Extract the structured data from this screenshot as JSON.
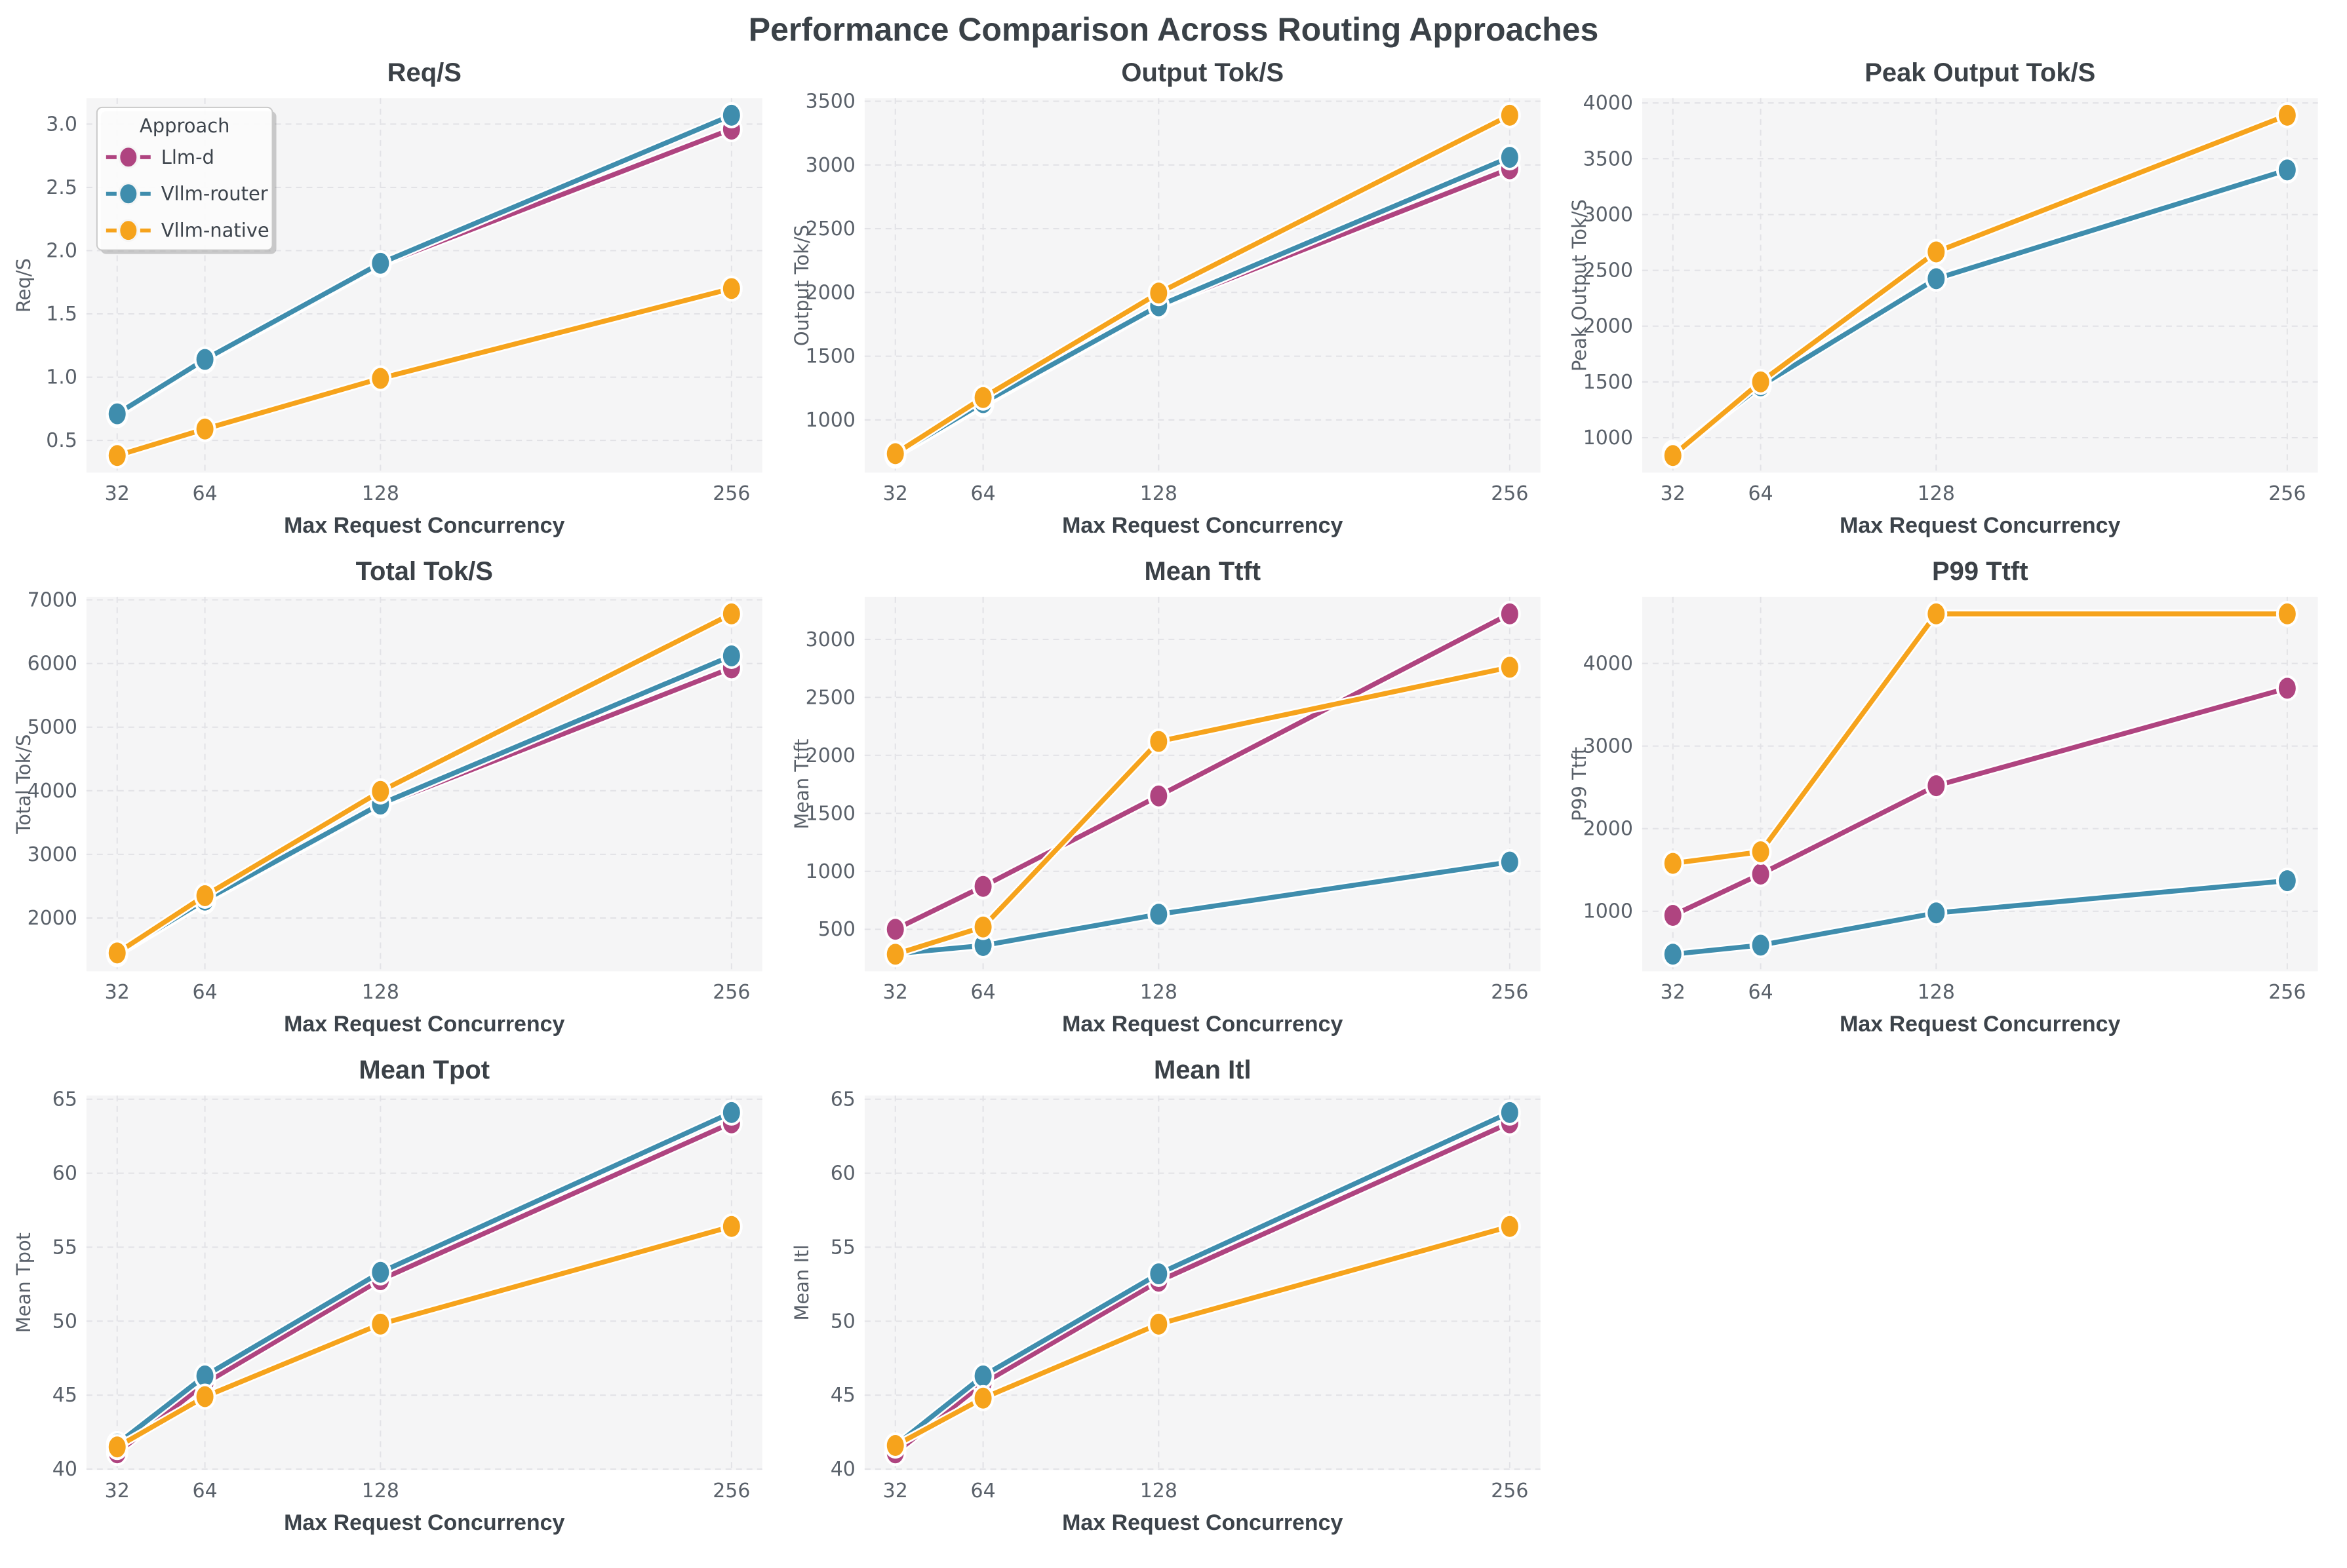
{
  "suptitle": "Performance Comparison Across Routing Approaches",
  "legend": {
    "title": "Approach",
    "entries": [
      {
        "label": "Llm-d",
        "color": "#af4480"
      },
      {
        "label": "Vllm-router",
        "color": "#3f8dad"
      },
      {
        "label": "Vllm-native",
        "color": "#f6a31c"
      }
    ]
  },
  "style": {
    "plot_bg": "#f5f5f6",
    "grid_color": "#e2e2e6",
    "title_color": "#3b4147",
    "tick_color": "#5a616a",
    "label_color": "#3c434a",
    "halo_color": "#ffffff"
  },
  "xlabel": "Max Request Concurrency",
  "xticks": [
    32,
    64,
    128,
    256
  ],
  "chart_data": [
    {
      "type": "line",
      "title": "Req/S",
      "ylabel": "Req/S",
      "x": [
        32,
        64,
        128,
        256
      ],
      "ytick_labels": [
        "0.5",
        "1.0",
        "1.5",
        "2.0",
        "2.5",
        "3.0"
      ],
      "yticks": [
        0.5,
        1.0,
        1.5,
        2.0,
        2.5,
        3.0
      ],
      "show_legend": true,
      "series": [
        {
          "name": "Llm-d",
          "values": [
            0.7,
            1.13,
            1.89,
            2.96
          ]
        },
        {
          "name": "Vllm-router",
          "values": [
            0.71,
            1.14,
            1.9,
            3.07
          ]
        },
        {
          "name": "Vllm-native",
          "values": [
            0.38,
            0.59,
            0.99,
            1.7
          ]
        }
      ]
    },
    {
      "type": "line",
      "title": "Output Tok/S",
      "ylabel": "Output Tok/S",
      "x": [
        32,
        64,
        128,
        256
      ],
      "ytick_labels": [
        "1000",
        "1500",
        "2000",
        "2500",
        "3000",
        "3500"
      ],
      "yticks": [
        1000,
        1500,
        2000,
        2500,
        3000,
        3500
      ],
      "show_legend": false,
      "series": [
        {
          "name": "Llm-d",
          "values": [
            720,
            1120,
            1890,
            2970
          ]
        },
        {
          "name": "Vllm-router",
          "values": [
            725,
            1135,
            1895,
            3060
          ]
        },
        {
          "name": "Vllm-native",
          "values": [
            735,
            1175,
            1995,
            3390
          ]
        }
      ]
    },
    {
      "type": "line",
      "title": "Peak Output Tok/S",
      "ylabel": "Peak Output Tok/S",
      "x": [
        32,
        64,
        128,
        256
      ],
      "ytick_labels": [
        "1000",
        "1500",
        "2000",
        "2500",
        "3000",
        "3500",
        "4000"
      ],
      "yticks": [
        1000,
        1500,
        2000,
        2500,
        3000,
        3500,
        4000
      ],
      "show_legend": false,
      "series": [
        {
          "name": "Llm-d",
          "values": [
            865,
            1475,
            2430,
            3395
          ]
        },
        {
          "name": "Vllm-router",
          "values": [
            850,
            1465,
            2425,
            3400
          ]
        },
        {
          "name": "Vllm-native",
          "values": [
            840,
            1500,
            2665,
            3890
          ]
        }
      ]
    },
    {
      "type": "line",
      "title": "Total Tok/S",
      "ylabel": "Total Tok/S",
      "x": [
        32,
        64,
        128,
        256
      ],
      "ytick_labels": [
        "2000",
        "3000",
        "4000",
        "5000",
        "6000",
        "7000"
      ],
      "yticks": [
        2000,
        3000,
        4000,
        5000,
        6000,
        7000
      ],
      "show_legend": false,
      "series": [
        {
          "name": "Llm-d",
          "values": [
            1430,
            2260,
            3770,
            5930
          ]
        },
        {
          "name": "Vllm-router",
          "values": [
            1440,
            2280,
            3790,
            6120
          ]
        },
        {
          "name": "Vllm-native",
          "values": [
            1450,
            2350,
            3990,
            6780
          ]
        }
      ]
    },
    {
      "type": "line",
      "title": "Mean Ttft",
      "ylabel": "Mean Ttft",
      "x": [
        32,
        64,
        128,
        256
      ],
      "ytick_labels": [
        "500",
        "1000",
        "1500",
        "2000",
        "2500",
        "3000"
      ],
      "yticks": [
        500,
        1000,
        1500,
        2000,
        2500,
        3000
      ],
      "show_legend": false,
      "series": [
        {
          "name": "Llm-d",
          "values": [
            500,
            870,
            1650,
            3220
          ]
        },
        {
          "name": "Vllm-router",
          "values": [
            290,
            360,
            630,
            1080
          ]
        },
        {
          "name": "Vllm-native",
          "values": [
            285,
            520,
            2120,
            2760
          ]
        }
      ]
    },
    {
      "type": "line",
      "title": "P99 Ttft",
      "ylabel": "P99 Ttft",
      "x": [
        32,
        64,
        128,
        256
      ],
      "ytick_labels": [
        "1000",
        "2000",
        "3000",
        "4000"
      ],
      "yticks": [
        1000,
        2000,
        3000,
        4000
      ],
      "show_legend": false,
      "series": [
        {
          "name": "Llm-d",
          "values": [
            950,
            1450,
            2520,
            3700
          ]
        },
        {
          "name": "Vllm-router",
          "values": [
            480,
            590,
            980,
            1370
          ]
        },
        {
          "name": "Vllm-native",
          "values": [
            1580,
            1720,
            4600,
            4600
          ]
        }
      ]
    },
    {
      "type": "line",
      "title": "Mean Tpot",
      "ylabel": "Mean Tpot",
      "x": [
        32,
        64,
        128,
        256
      ],
      "ytick_labels": [
        "40",
        "45",
        "50",
        "55",
        "60",
        "65"
      ],
      "yticks": [
        40,
        45,
        50,
        55,
        60,
        65
      ],
      "show_legend": false,
      "series": [
        {
          "name": "Llm-d",
          "values": [
            41.1,
            45.8,
            52.8,
            63.4
          ]
        },
        {
          "name": "Vllm-router",
          "values": [
            41.7,
            46.3,
            53.3,
            64.1
          ]
        },
        {
          "name": "Vllm-native",
          "values": [
            41.5,
            44.9,
            49.8,
            56.4
          ]
        }
      ]
    },
    {
      "type": "line",
      "title": "Mean Itl",
      "ylabel": "Mean Itl",
      "x": [
        32,
        64,
        128,
        256
      ],
      "ytick_labels": [
        "40",
        "45",
        "50",
        "55",
        "60",
        "65"
      ],
      "yticks": [
        40,
        45,
        50,
        55,
        60,
        65
      ],
      "show_legend": false,
      "series": [
        {
          "name": "Llm-d",
          "values": [
            41.1,
            45.8,
            52.7,
            63.4
          ]
        },
        {
          "name": "Vllm-router",
          "values": [
            41.6,
            46.3,
            53.2,
            64.1
          ]
        },
        {
          "name": "Vllm-native",
          "values": [
            41.6,
            44.8,
            49.8,
            56.4
          ]
        }
      ]
    }
  ]
}
